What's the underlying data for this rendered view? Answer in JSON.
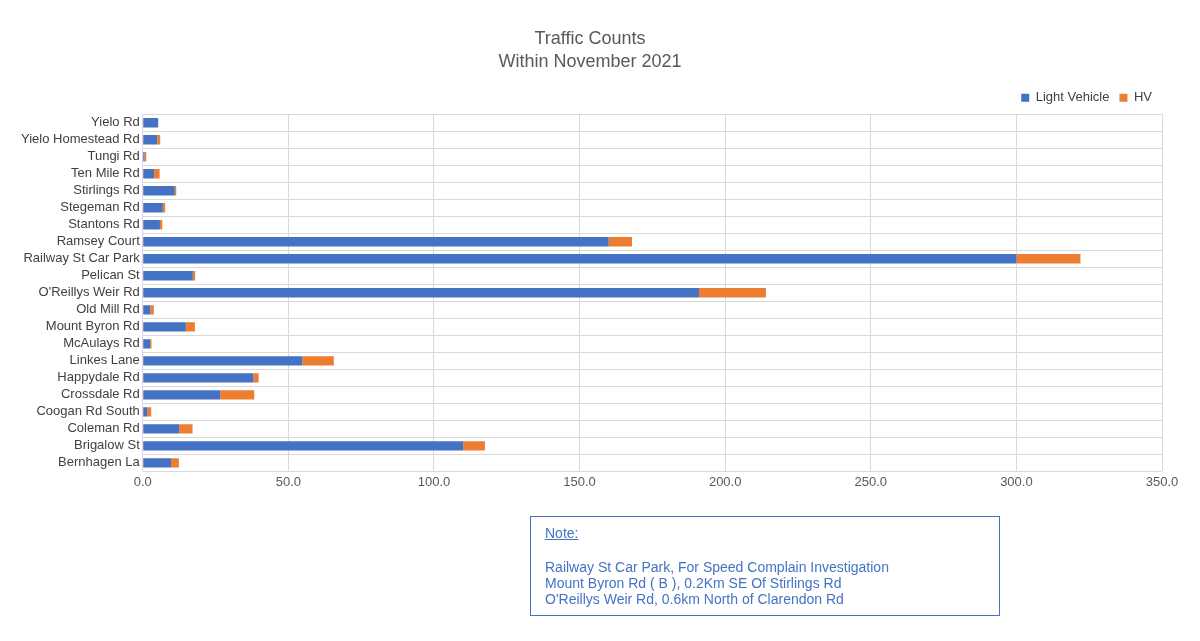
{
  "chart_data": {
    "type": "bar",
    "orientation": "horizontal",
    "stacked": true,
    "title": "Traffic Counts",
    "subtitle": "Within November 2021",
    "categories": [
      "Yielo Rd",
      "Yielo Homestead Rd",
      "Tungi Rd",
      "Ten Mile Rd",
      "Stirlings Rd",
      "Stegeman Rd",
      "Stantons Rd",
      "Ramsey Court",
      "Railway St Car Park",
      "Pelican St",
      "O'Reillys Weir Rd",
      "Old Mill Rd",
      "Mount Byron Rd",
      "McAulays Rd",
      "Linkes Lane",
      "Happydale Rd",
      "Crossdale Rd",
      "Coogan Rd South",
      "Coleman Rd",
      "Brigalow St",
      "Bernhagen La"
    ],
    "series": [
      {
        "name": "Light Vehicle",
        "color": "#4472c4",
        "values": [
          5.3,
          5.0,
          0.6,
          3.9,
          11.0,
          6.9,
          5.9,
          160,
          300,
          17.2,
          191,
          2.6,
          14.8,
          2.5,
          54.8,
          38.0,
          26.6,
          1.5,
          12.5,
          110,
          9.7
        ]
      },
      {
        "name": "HV",
        "color": "#ed7d31",
        "values": [
          0,
          1.0,
          0.6,
          1.9,
          0.5,
          0.8,
          0.8,
          8,
          22,
          0.8,
          23,
          1.2,
          3.1,
          0.5,
          10.8,
          1.8,
          11.7,
          1.4,
          4.6,
          7.5,
          2.7
        ]
      }
    ],
    "xlim": [
      0,
      350
    ],
    "xticks": [
      {
        "value": 0,
        "label": "0.0"
      },
      {
        "value": 50,
        "label": "50.0"
      },
      {
        "value": 100,
        "label": "100.0"
      },
      {
        "value": 150,
        "label": "150.0"
      },
      {
        "value": 200,
        "label": "200.0"
      },
      {
        "value": 250,
        "label": "250.0"
      },
      {
        "value": 300,
        "label": "300.0"
      },
      {
        "value": 350,
        "label": "350.0"
      }
    ],
    "grid": true,
    "legend": "top right",
    "annotations": [
      "Note:",
      "Railway St Car Park, For Speed Complain Investigation",
      "Mount Byron Rd ( B ), 0.2Km SE Of Stirlings Rd",
      "O'Reillys Weir Rd, 0.6km North of Clarendon Rd"
    ]
  }
}
